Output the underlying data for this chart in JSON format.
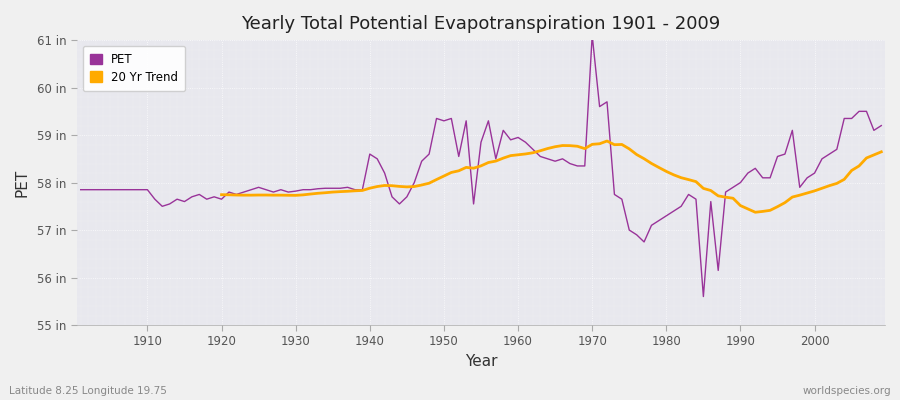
{
  "title": "Yearly Total Potential Evapotranspiration 1901 - 2009",
  "xlabel": "Year",
  "ylabel": "PET",
  "subtitle_left": "Latitude 8.25 Longitude 19.75",
  "subtitle_right": "worldspecies.org",
  "ylim": [
    55,
    61
  ],
  "ytick_labels": [
    "55 in",
    "56 in",
    "57 in",
    "58 in",
    "59 in",
    "60 in",
    "61 in"
  ],
  "ytick_values": [
    55,
    56,
    57,
    58,
    59,
    60,
    61
  ],
  "years": [
    1901,
    1902,
    1903,
    1904,
    1905,
    1906,
    1907,
    1908,
    1909,
    1910,
    1911,
    1912,
    1913,
    1914,
    1915,
    1916,
    1917,
    1918,
    1919,
    1920,
    1921,
    1922,
    1923,
    1924,
    1925,
    1926,
    1927,
    1928,
    1929,
    1930,
    1931,
    1932,
    1933,
    1934,
    1935,
    1936,
    1937,
    1938,
    1939,
    1940,
    1941,
    1942,
    1943,
    1944,
    1945,
    1946,
    1947,
    1948,
    1949,
    1950,
    1951,
    1952,
    1953,
    1954,
    1955,
    1956,
    1957,
    1958,
    1959,
    1960,
    1961,
    1962,
    1963,
    1964,
    1965,
    1966,
    1967,
    1968,
    1969,
    1970,
    1971,
    1972,
    1973,
    1974,
    1975,
    1976,
    1977,
    1978,
    1979,
    1980,
    1981,
    1982,
    1983,
    1984,
    1985,
    1986,
    1987,
    1988,
    1989,
    1990,
    1991,
    1992,
    1993,
    1994,
    1995,
    1996,
    1997,
    1998,
    1999,
    2000,
    2001,
    2002,
    2003,
    2004,
    2005,
    2006,
    2007,
    2008,
    2009
  ],
  "pet": [
    57.85,
    57.85,
    57.85,
    57.85,
    57.85,
    57.85,
    57.85,
    57.85,
    57.85,
    57.85,
    57.65,
    57.5,
    57.55,
    57.65,
    57.6,
    57.7,
    57.75,
    57.65,
    57.7,
    57.65,
    57.8,
    57.75,
    57.8,
    57.85,
    57.9,
    57.85,
    57.8,
    57.85,
    57.8,
    57.82,
    57.85,
    57.85,
    57.87,
    57.88,
    57.88,
    57.88,
    57.9,
    57.85,
    57.85,
    58.6,
    58.5,
    58.2,
    57.7,
    57.55,
    57.7,
    58.0,
    58.45,
    58.6,
    59.35,
    59.3,
    59.35,
    58.55,
    59.3,
    57.55,
    58.85,
    59.3,
    58.5,
    59.1,
    58.9,
    58.95,
    58.85,
    58.7,
    58.55,
    58.5,
    58.45,
    58.5,
    58.4,
    58.35,
    58.35,
    61.1,
    59.6,
    59.7,
    57.75,
    57.65,
    57.0,
    56.9,
    56.75,
    57.1,
    57.2,
    57.3,
    57.4,
    57.5,
    57.75,
    57.65,
    55.6,
    57.6,
    56.15,
    57.8,
    57.9,
    58.0,
    58.2,
    58.3,
    58.1,
    58.1,
    58.55,
    58.6,
    59.1,
    57.9,
    58.1,
    58.2,
    58.5,
    58.6,
    58.7,
    59.35,
    59.35,
    59.5,
    59.5,
    59.1,
    59.2
  ],
  "pet_color": "#993399",
  "trend_color": "#ffaa00",
  "fig_bg_color": "#f0f0f0",
  "plot_bg_color": "#e8e8ee",
  "grid_color": "#ffffff",
  "grid_alpha": 0.9,
  "trend_window": 20,
  "xticks": [
    1910,
    1920,
    1930,
    1940,
    1950,
    1960,
    1970,
    1980,
    1990,
    2000
  ]
}
